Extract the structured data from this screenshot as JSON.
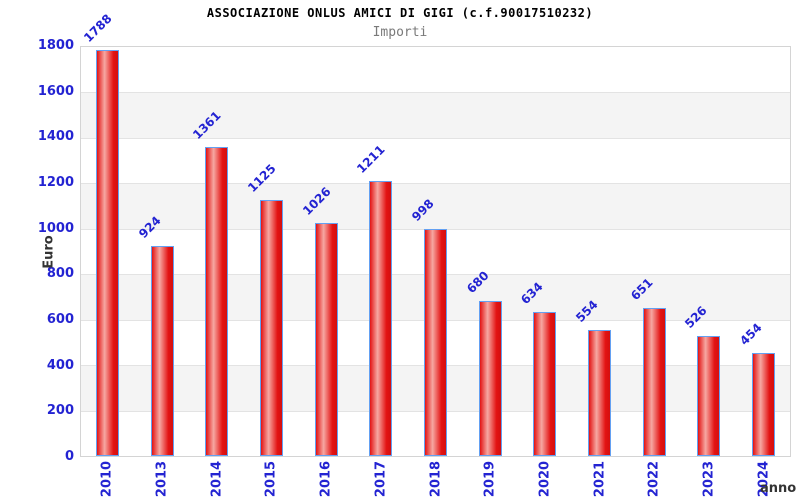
{
  "header": {
    "title": "ASSOCIAZIONE ONLUS AMICI DI GIGI (c.f.90017510232)",
    "subtitle": "Importi"
  },
  "chart_data": {
    "type": "bar",
    "title": "ASSOCIAZIONE ONLUS AMICI DI GIGI (c.f.90017510232)",
    "subtitle": "Importi",
    "categories": [
      "2010",
      "2013",
      "2014",
      "2015",
      "2016",
      "2017",
      "2018",
      "2019",
      "2020",
      "2021",
      "2022",
      "2023",
      "2024"
    ],
    "values": [
      1788,
      924,
      1361,
      1125,
      1026,
      1211,
      998,
      680,
      634,
      554,
      651,
      526,
      454
    ],
    "xlabel": "anno",
    "ylabel": "Euro",
    "ylim": [
      0,
      1800
    ],
    "yticks": [
      0,
      200,
      400,
      600,
      800,
      1000,
      1200,
      1400,
      1600,
      1800
    ],
    "grid": true,
    "legend": false,
    "value_label_rotation_deg": -45,
    "xtick_rotation_deg": -90,
    "background_bands": "alternating white/gray every 200"
  },
  "colors": {
    "tick_label_blue": "#2323d2",
    "value_label_blue": "#2323d2",
    "bar_fill_edge": "#e31313",
    "bar_fill_highlight": "#f6a8a2",
    "bar_fill_dark_edge": "#d40f0f",
    "bar_border_blue": "#63a0f2",
    "plot_border": "#d4d4d4",
    "grid_line": "#e3e3e3",
    "band_gray": "#f4f4f4",
    "band_white": "#ffffff",
    "title_color": "#000000",
    "subtitle_color": "#7a7a7a",
    "axis_title_color": "#333333",
    "background": "#ffffff"
  }
}
